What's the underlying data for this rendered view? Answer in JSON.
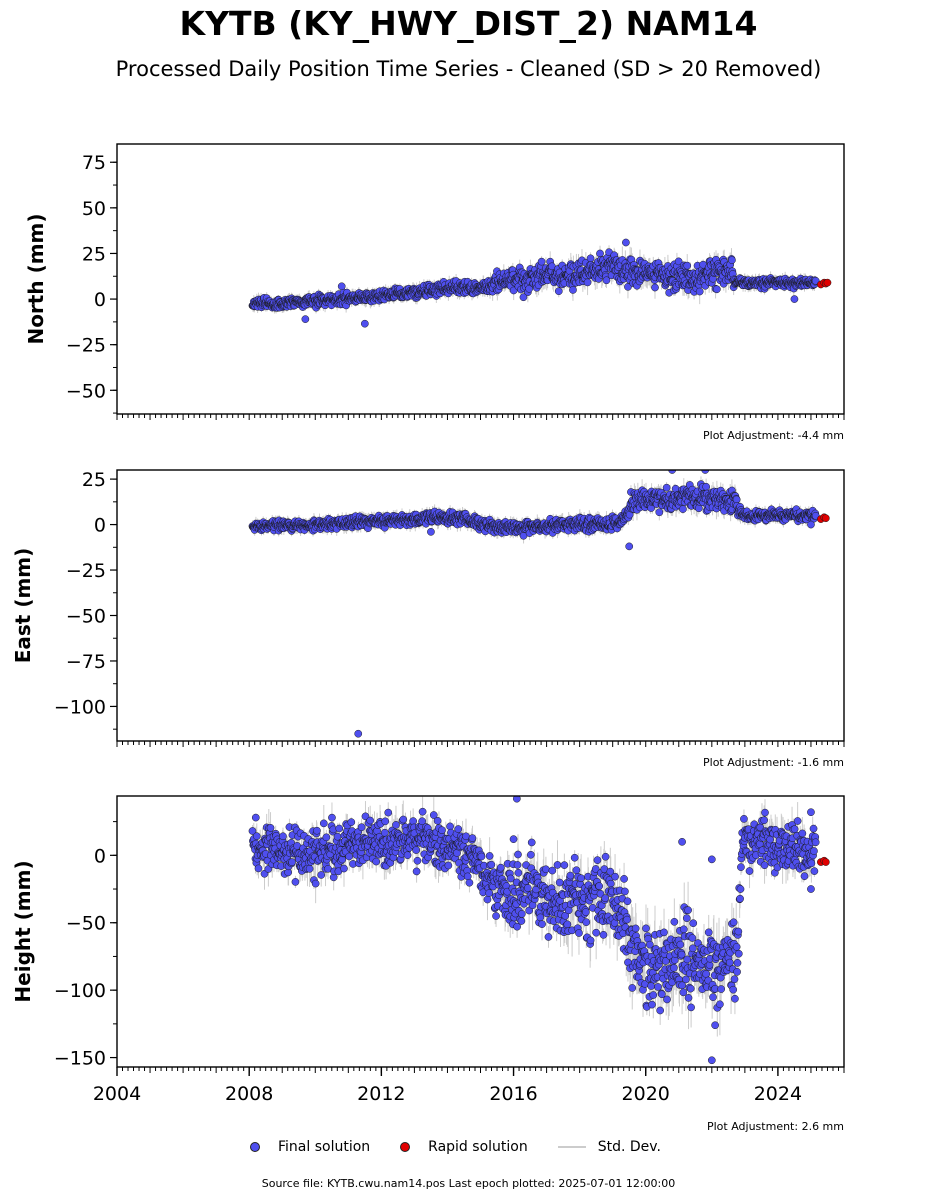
{
  "title": "KYTB (KY_HWY_DIST_2) NAM14",
  "subtitle": "Processed Daily Position Time Series - Cleaned (SD > 20 Removed)",
  "legend": {
    "final": "Final solution",
    "rapid": "Rapid solution",
    "std": "Std. Dev."
  },
  "colors": {
    "final": "#4f4fef",
    "rapid": "#e00000",
    "std": "#cccccc",
    "edge": "#1a1a1a"
  },
  "source_note": "Source file: KYTB.cwu.nam14.pos  Last epoch plotted: 2025-07-01 12:00:00",
  "chart_data": [
    {
      "type": "scatter",
      "ylabel": "North (mm)",
      "adjustment": "Plot Adjustment: -4.4 mm",
      "xlim": [
        2004,
        2026
      ],
      "ylim": [
        -63,
        85
      ],
      "yticks": [
        75,
        50,
        25,
        0,
        -25,
        -50
      ],
      "ytick_labels": [
        "75",
        "50",
        "25",
        "0",
        "−25",
        "−50"
      ],
      "trend": [
        [
          2008.1,
          -2
        ],
        [
          2009,
          -3
        ],
        [
          2010,
          -1
        ],
        [
          2011,
          0
        ],
        [
          2012,
          2
        ],
        [
          2013,
          4
        ],
        [
          2014,
          6
        ],
        [
          2015,
          6
        ],
        [
          2015.5,
          10
        ],
        [
          2016,
          12
        ],
        [
          2016.5,
          10
        ],
        [
          2017,
          15
        ],
        [
          2017.5,
          12
        ],
        [
          2018,
          14
        ],
        [
          2018.5,
          16
        ],
        [
          2019,
          18
        ],
        [
          2019.5,
          15
        ],
        [
          2020,
          14
        ],
        [
          2020.5,
          13
        ],
        [
          2021,
          12
        ],
        [
          2021.5,
          11
        ],
        [
          2022,
          14
        ],
        [
          2022.5,
          16
        ],
        [
          2022.7,
          10
        ],
        [
          2023,
          9
        ],
        [
          2024,
          9
        ],
        [
          2025,
          9
        ]
      ],
      "spread": [
        [
          2008,
          2
        ],
        [
          2015,
          2.5
        ],
        [
          2015.5,
          4
        ],
        [
          2019,
          6
        ],
        [
          2022.6,
          6
        ],
        [
          2022.7,
          2
        ],
        [
          2025,
          2
        ]
      ],
      "outliers": [
        [
          2009.7,
          -11
        ],
        [
          2011.5,
          -13.5
        ],
        [
          2010.8,
          7
        ],
        [
          2019.4,
          31
        ],
        [
          2016.3,
          1
        ],
        [
          2024.5,
          0
        ]
      ],
      "rapid": [
        [
          2025.3,
          8
        ],
        [
          2025.4,
          9
        ],
        [
          2025.45,
          8.5
        ],
        [
          2025.5,
          9
        ]
      ]
    },
    {
      "type": "scatter",
      "ylabel": "East (mm)",
      "adjustment": "Plot Adjustment: -1.6 mm",
      "xlim": [
        2004,
        2026
      ],
      "ylim": [
        -119,
        30
      ],
      "yticks": [
        25,
        0,
        -25,
        -50,
        -75,
        -100
      ],
      "ytick_labels": [
        "25",
        "0",
        "−25",
        "−50",
        "−75",
        "−100"
      ],
      "trend": [
        [
          2008.1,
          -1
        ],
        [
          2010,
          0
        ],
        [
          2011,
          1
        ],
        [
          2012,
          2
        ],
        [
          2013,
          3
        ],
        [
          2014,
          4
        ],
        [
          2014.5,
          4
        ],
        [
          2015,
          0
        ],
        [
          2016,
          -2
        ],
        [
          2017,
          -1
        ],
        [
          2018,
          0
        ],
        [
          2019,
          0
        ],
        [
          2019.3,
          2
        ],
        [
          2019.6,
          12
        ],
        [
          2020,
          14
        ],
        [
          2021,
          14
        ],
        [
          2022,
          15
        ],
        [
          2022.7,
          12
        ],
        [
          2022.9,
          5
        ],
        [
          2024,
          5
        ],
        [
          2025,
          5
        ]
      ],
      "spread": [
        [
          2008,
          2
        ],
        [
          2019.4,
          3
        ],
        [
          2019.6,
          5
        ],
        [
          2022.8,
          5
        ],
        [
          2022.9,
          2
        ],
        [
          2025,
          2
        ]
      ],
      "outliers": [
        [
          2011.3,
          -115
        ],
        [
          2019.5,
          -12
        ],
        [
          2020.8,
          30
        ],
        [
          2021.8,
          30
        ],
        [
          2013.5,
          -4
        ],
        [
          2025,
          0
        ]
      ],
      "rapid": [
        [
          2025.3,
          3
        ],
        [
          2025.4,
          4
        ],
        [
          2025.45,
          3.5
        ]
      ]
    },
    {
      "type": "scatter",
      "ylabel": "Height (mm)",
      "adjustment": "Plot Adjustment: 2.6 mm",
      "xlim": [
        2004,
        2026
      ],
      "ylim": [
        -157,
        44
      ],
      "yticks": [
        0,
        -50,
        -100,
        -150
      ],
      "ytick_labels": [
        "0",
        "−50",
        "−100",
        "−150"
      ],
      "xticks": [
        2004,
        2008,
        2012,
        2016,
        2020,
        2024
      ],
      "xtick_labels": [
        "2004",
        "2008",
        "2012",
        "2016",
        "2020",
        "2024"
      ],
      "trend": [
        [
          2008.1,
          5
        ],
        [
          2009,
          2
        ],
        [
          2010,
          0
        ],
        [
          2011,
          8
        ],
        [
          2012,
          10
        ],
        [
          2013,
          12
        ],
        [
          2014,
          8
        ],
        [
          2014.5,
          2
        ],
        [
          2015,
          -10
        ],
        [
          2015.5,
          -25
        ],
        [
          2016,
          -28
        ],
        [
          2016.5,
          -22
        ],
        [
          2017,
          -30
        ],
        [
          2017.5,
          -38
        ],
        [
          2018,
          -35
        ],
        [
          2018.5,
          -30
        ],
        [
          2019,
          -28
        ],
        [
          2019.3,
          -40
        ],
        [
          2019.6,
          -70
        ],
        [
          2020,
          -85
        ],
        [
          2020.5,
          -80
        ],
        [
          2021,
          -75
        ],
        [
          2021.5,
          -85
        ],
        [
          2022,
          -80
        ],
        [
          2022.5,
          -78
        ],
        [
          2022.8,
          -70
        ],
        [
          2022.9,
          10
        ],
        [
          2023.5,
          12
        ],
        [
          2024,
          8
        ],
        [
          2025,
          2
        ]
      ],
      "spread": [
        [
          2008,
          14
        ],
        [
          2015,
          14
        ],
        [
          2016,
          18
        ],
        [
          2019.3,
          22
        ],
        [
          2019.6,
          24
        ],
        [
          2022.8,
          24
        ],
        [
          2022.9,
          14
        ],
        [
          2025,
          14
        ]
      ],
      "outliers": [
        [
          2016.1,
          42
        ],
        [
          2008.2,
          28
        ],
        [
          2022,
          -152
        ],
        [
          2022.1,
          -126
        ],
        [
          2025,
          -25
        ],
        [
          2025,
          32
        ],
        [
          2021.1,
          10
        ],
        [
          2022,
          -3
        ],
        [
          2016,
          12
        ]
      ],
      "rapid": [
        [
          2025.3,
          -5
        ],
        [
          2025.4,
          -4
        ],
        [
          2025.45,
          -5
        ]
      ]
    }
  ]
}
